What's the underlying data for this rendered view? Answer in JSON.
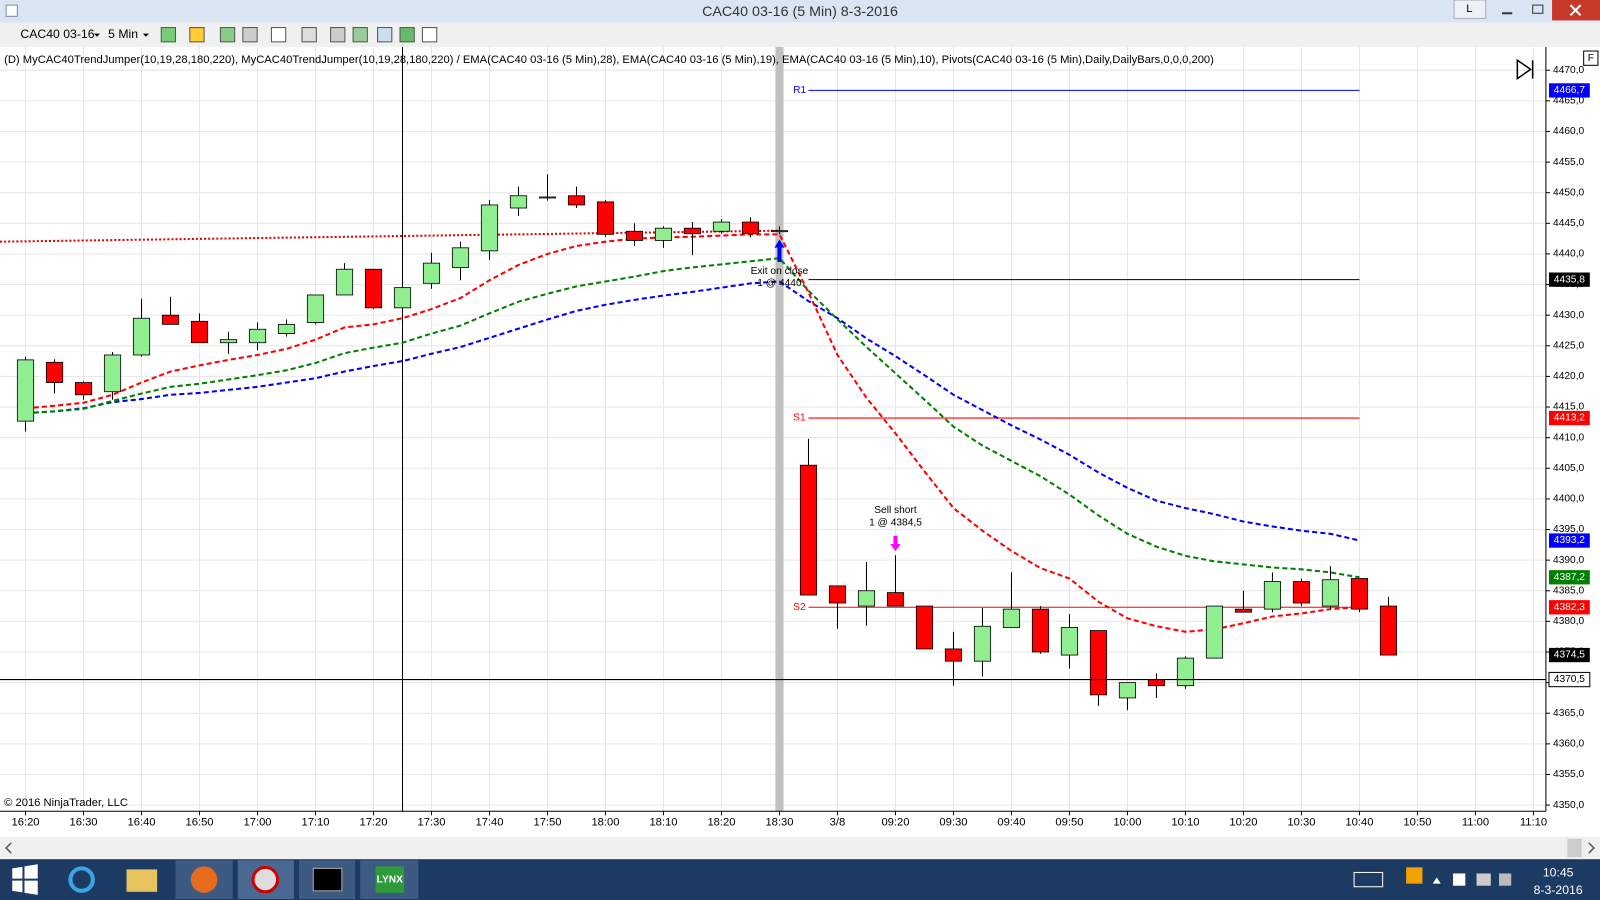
{
  "window": {
    "title": "CAC40 03-16 (5 Min)  8-3-2016",
    "button": "L"
  },
  "toolbar": {
    "symbol": "CAC40 03-16",
    "interval": "5 Min"
  },
  "indicators": "(D) MyCAC40TrendJumper(10,19,28,180,220), MyCAC40TrendJumper(10,19,28,180,220) / EMA(CAC40 03-16 (5 Min),28), EMA(CAC40 03-16 (5 Min),19), EMA(CAC40 03-16 (5 Min),10), Pivots(CAC40 03-16 (5 Min),Daily,DailyBars,0,0,0,200)",
  "flag": "F",
  "copyright": "© 2016 NinjaTrader, LLC",
  "taskbar": {
    "app": "LYNX",
    "time": "10:45",
    "date": "8-3-2016"
  },
  "chart_data": {
    "type": "candlestick",
    "x": [
      0,
      1,
      2,
      3,
      4,
      5,
      6,
      7,
      8,
      9,
      10,
      11,
      12,
      13,
      14,
      15,
      16,
      17,
      18,
      19,
      20,
      21,
      22,
      23,
      24,
      25,
      26,
      27,
      28,
      29,
      30,
      31,
      32,
      33,
      34,
      35,
      36,
      37,
      38,
      39,
      40,
      41,
      42,
      43,
      44,
      45,
      46,
      47
    ],
    "open": [
      4412.7,
      4422.3,
      4419.0,
      4417.5,
      4423.5,
      4430.0,
      4429.0,
      4425.5,
      4425.5,
      4427.0,
      4428.8,
      4433.3,
      4437.5,
      4431.2,
      4435.2,
      4437.8,
      4440.5,
      4447.5,
      4449.3,
      4449.5,
      4448.5,
      4443.7,
      4442.2,
      4444.2,
      4443.7,
      4445.2,
      4443.8,
      4405.5,
      4385.8,
      4382.5,
      4384.7,
      4382.5,
      4375.5,
      4373.5,
      4379.0,
      4382.0,
      4374.5,
      4378.5,
      4367.5,
      4370.5,
      4369.5,
      4374.0,
      4382.0,
      4382.0,
      4386.5,
      4382.5,
      4387.0,
      4382.5
    ],
    "high": [
      4423.2,
      4422.8,
      4419.2,
      4424.0,
      4432.7,
      4433.0,
      4430.3,
      4427.3,
      4428.8,
      4429.3,
      4433.3,
      4438.5,
      4437.5,
      4439.5,
      4440.2,
      4442.0,
      4448.8,
      4451.0,
      4453.0,
      4451.0,
      4448.8,
      4445.0,
      4444.5,
      4445.2,
      4445.7,
      4446.0,
      4444.5,
      4409.8,
      4385.8,
      4389.7,
      4390.8,
      4382.5,
      4378.3,
      4382.2,
      4388.0,
      4382.5,
      4381.2,
      4378.5,
      4370.0,
      4371.5,
      4374.3,
      4382.5,
      4385.0,
      4388.0,
      4387.0,
      4389.0,
      4387.0,
      4384.0
    ],
    "low": [
      4411.0,
      4417.2,
      4416.2,
      4416.2,
      4423.2,
      4428.5,
      4425.5,
      4423.7,
      4424.3,
      4426.5,
      4428.5,
      4433.3,
      4431.0,
      4430.7,
      4434.3,
      4435.7,
      4439.0,
      4446.2,
      4448.7,
      4447.5,
      4442.8,
      4441.3,
      4441.0,
      4439.8,
      4443.3,
      4442.7,
      4443.2,
      4384.3,
      4378.8,
      4379.3,
      4382.5,
      4375.5,
      4369.5,
      4371.0,
      4379.0,
      4374.7,
      4372.3,
      4366.2,
      4365.5,
      4367.5,
      4369.0,
      4374.0,
      4381.5,
      4381.5,
      4382.5,
      4382.0,
      4381.5,
      4374.5
    ],
    "close": [
      4422.7,
      4419.0,
      4417.0,
      4423.5,
      4429.5,
      4428.5,
      4425.5,
      4426.0,
      4427.7,
      4428.5,
      4433.3,
      4437.5,
      4431.2,
      4434.5,
      4438.5,
      4441.0,
      4448.0,
      4449.5,
      4449.3,
      4448.0,
      4443.2,
      4442.2,
      4444.2,
      4443.3,
      4445.2,
      4443.3,
      4443.8,
      4384.3,
      4383.0,
      4385.0,
      4382.5,
      4375.5,
      4373.5,
      4379.2,
      4382.0,
      4375.0,
      4379.0,
      4368.0,
      4370.0,
      4369.5,
      4374.0,
      4382.5,
      4381.5,
      4386.5,
      4383.0,
      4386.8,
      4382.0,
      4374.5
    ],
    "up_color": "#90ee90",
    "down_color": "#ff0000",
    "last_label": "4374,5",
    "series": [
      {
        "color": "#0000ff",
        "last_label": "4393,2",
        "values": [
          4414.0,
          4414.3,
          4414.8,
          4415.8,
          4416.3,
          4417.0,
          4417.3,
          4417.8,
          4418.3,
          4419.0,
          4419.7,
          4420.8,
          4421.7,
          4422.5,
          4423.7,
          4424.8,
          4426.3,
          4427.8,
          4429.3,
          4430.7,
          4431.7,
          4432.5,
          4433.2,
          4433.8,
          4434.5,
          4435.2,
          4435.5,
          4432.3,
          4429.5,
          4426.2,
          4423.3,
          4420.2,
          4417.0,
          4414.5,
          4412.0,
          4409.7,
          4407.2,
          4404.3,
          4401.8,
          4399.7,
          4398.5,
          4397.5,
          4396.3,
          4395.5,
          4394.8,
          4394.3,
          4393.2,
          null
        ]
      },
      {
        "color": "#008000",
        "last_label": "4387,2",
        "values": [
          4414.0,
          4414.3,
          4414.7,
          4416.0,
          4417.2,
          4418.3,
          4418.8,
          4419.5,
          4420.2,
          4421.0,
          4422.2,
          4423.8,
          4424.7,
          4425.5,
          4427.0,
          4428.3,
          4430.3,
          4432.2,
          4433.5,
          4434.7,
          4435.5,
          4436.3,
          4437.2,
          4437.8,
          4438.3,
          4438.8,
          4439.3,
          4434.0,
          4429.3,
          4424.8,
          4420.5,
          4416.2,
          4411.8,
          4408.7,
          4406.2,
          4403.7,
          4400.7,
          4397.3,
          4394.3,
          4392.2,
          4390.7,
          4389.8,
          4389.3,
          4388.8,
          4388.5,
          4388.0,
          4387.2,
          null
        ]
      },
      {
        "color": "#ff0000",
        "values": [
          4414.8,
          4415.2,
          4415.7,
          4417.0,
          4419.0,
          4420.8,
          4421.8,
          4422.7,
          4423.5,
          4424.5,
          4426.0,
          4428.0,
          4428.5,
          4429.5,
          4431.0,
          4432.8,
          4435.7,
          4438.2,
          4440.0,
          4441.3,
          4442.0,
          4442.5,
          4442.7,
          4442.8,
          4443.0,
          4443.2,
          4443.2,
          4433.7,
          4423.5,
          4416.5,
          4410.7,
          4404.5,
          4398.5,
          4394.8,
          4391.5,
          4388.7,
          4387.0,
          4383.2,
          4380.5,
          4379.2,
          4378.3,
          4378.7,
          4379.7,
          4380.8,
          4381.3,
          4382.0,
          4382.3,
          null
        ]
      }
    ],
    "trend_line": {
      "color": "#e00000",
      "x": [
        -0.88,
        26
      ],
      "values": [
        4442.0,
        4443.8
      ]
    },
    "pivots": [
      {
        "name": "R1",
        "value": 4466.7,
        "label": "4466,7",
        "color": "#0000ff"
      },
      {
        "value": 4435.8,
        "label": "4435,8",
        "color": "#000000"
      },
      {
        "name": "S1",
        "value": 4413.2,
        "label": "4413,2",
        "color": "#ff0000"
      },
      {
        "name": "S2",
        "value": 4382.3,
        "label": "4382,3",
        "color": "#ff0000"
      }
    ],
    "pivot_range": [
      27,
      46
    ],
    "session_break": 26,
    "crosshair": {
      "x": 13,
      "y": {
        "value": 4370.5,
        "label": "4370,5"
      }
    },
    "markers": [
      {
        "x": 26,
        "direction": "up",
        "color": "#0000ff",
        "label": [
          "Exit on close",
          "1 @ 4440"
        ]
      },
      {
        "x": 30,
        "direction": "down",
        "color": "#ff00ff",
        "label": [
          "Sell short",
          "1 @ 4384,5"
        ]
      }
    ],
    "xlim": [
      -0.88,
      52.43
    ],
    "ylim": [
      4349.0,
      4473.8
    ],
    "grid": true,
    "xticks": [
      {
        "value": 0,
        "label": "16:20"
      },
      {
        "value": 2,
        "label": "16:30"
      },
      {
        "value": 4,
        "label": "16:40"
      },
      {
        "value": 6,
        "label": "16:50"
      },
      {
        "value": 8,
        "label": "17:00"
      },
      {
        "value": 10,
        "label": "17:10"
      },
      {
        "value": 12,
        "label": "17:20"
      },
      {
        "value": 14,
        "label": "17:30"
      },
      {
        "value": 16,
        "label": "17:40"
      },
      {
        "value": 18,
        "label": "17:50"
      },
      {
        "value": 20,
        "label": "18:00"
      },
      {
        "value": 22,
        "label": "18:10"
      },
      {
        "value": 24,
        "label": "18:20"
      },
      {
        "value": 26,
        "label": "18:30"
      },
      {
        "value": 28,
        "label": "3/8"
      },
      {
        "value": 30,
        "label": "09:20"
      },
      {
        "value": 32,
        "label": "09:30"
      },
      {
        "value": 34,
        "label": "09:40"
      },
      {
        "value": 36,
        "label": "09:50"
      },
      {
        "value": 38,
        "label": "10:00"
      },
      {
        "value": 40,
        "label": "10:10"
      },
      {
        "value": 42,
        "label": "10:20"
      },
      {
        "value": 44,
        "label": "10:30"
      },
      {
        "value": 46,
        "label": "10:40"
      },
      {
        "value": 48,
        "label": "10:50"
      },
      {
        "value": 50,
        "label": "11:00"
      },
      {
        "value": 52,
        "label": "11:10"
      }
    ],
    "yticks": [
      {
        "value": 4470,
        "label": "4470,0"
      },
      {
        "value": 4465,
        "label": "4465,0"
      },
      {
        "value": 4460,
        "label": "4460,0"
      },
      {
        "value": 4455,
        "label": "4455,0"
      },
      {
        "value": 4450,
        "label": "4450,0"
      },
      {
        "value": 4445,
        "label": "4445,0"
      },
      {
        "value": 4440,
        "label": "4440,0"
      },
      {
        "value": 4435,
        "label": "4435,0"
      },
      {
        "value": 4430,
        "label": "4430,0"
      },
      {
        "value": 4425,
        "label": "4425,0"
      },
      {
        "value": 4420,
        "label": "4420,0"
      },
      {
        "value": 4415,
        "label": "4415,0"
      },
      {
        "value": 4410,
        "label": "4410,0"
      },
      {
        "value": 4405,
        "label": "4405,0"
      },
      {
        "value": 4400,
        "label": "4400,0"
      },
      {
        "value": 4395,
        "label": "4395,0"
      },
      {
        "value": 4390,
        "label": "4390,0"
      },
      {
        "value": 4385,
        "label": "4385,0"
      },
      {
        "value": 4380,
        "label": "4380,0"
      },
      {
        "value": 4375,
        "label": "4375,0"
      },
      {
        "value": 4370,
        "label": "4370,0"
      },
      {
        "value": 4365,
        "label": "4365,0"
      },
      {
        "value": 4360,
        "label": "4360,0"
      },
      {
        "value": 4355,
        "label": "4355,0"
      },
      {
        "value": 4350,
        "label": "4350,0"
      }
    ]
  }
}
